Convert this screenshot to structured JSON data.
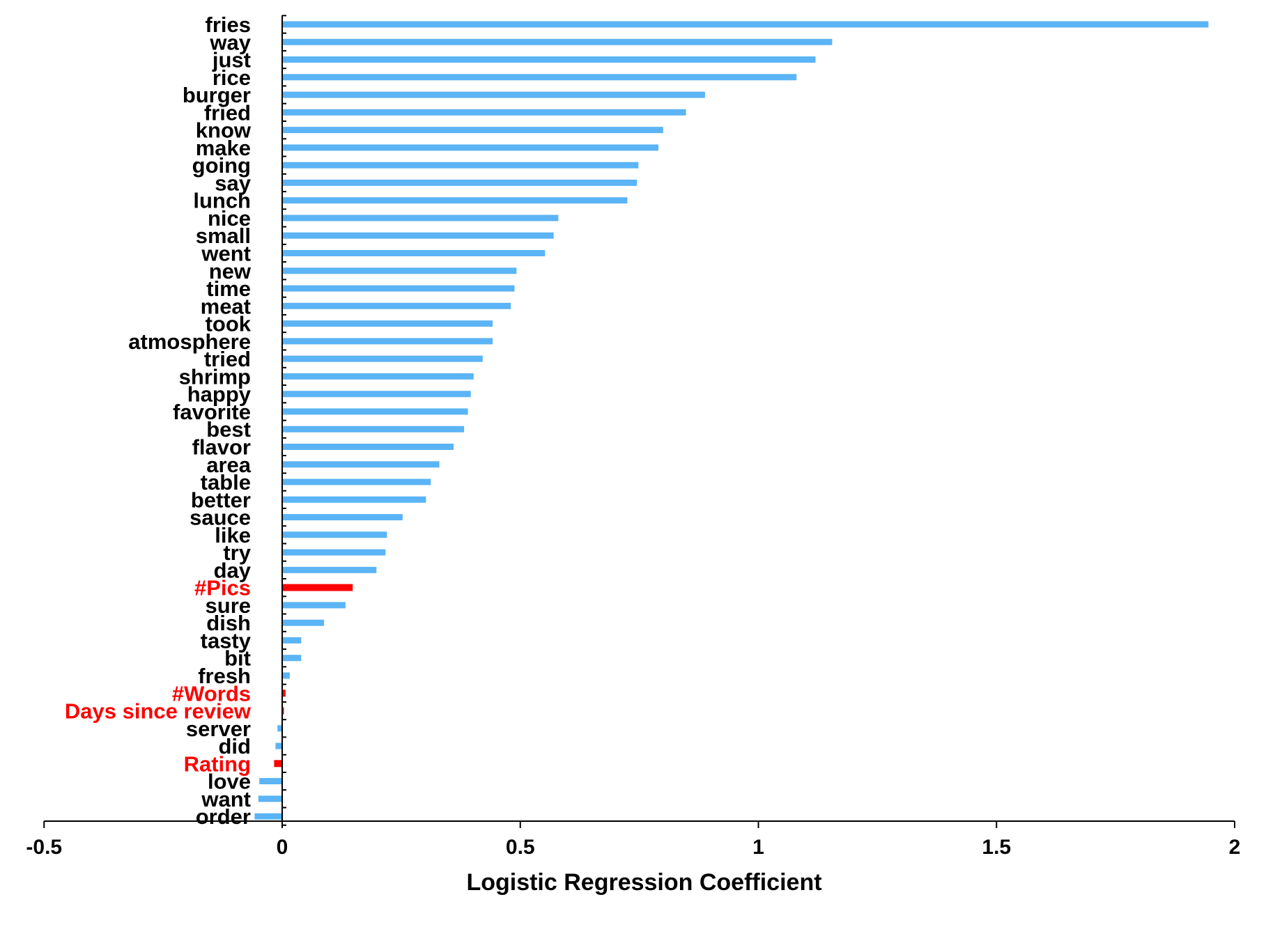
{
  "chart_data": {
    "type": "bar",
    "orientation": "horizontal",
    "xlabel": "Logistic Regression Coefficient",
    "ylabel": "",
    "xlim": [
      -0.5,
      2
    ],
    "xticks": [
      "-0.5",
      "0",
      "0.5",
      "1",
      "1.5",
      "2"
    ],
    "xtick_values": [
      -0.5,
      0,
      0.5,
      1,
      1.5,
      2
    ],
    "grid": false,
    "legend": "none",
    "colors": {
      "default": "#5BB4F5",
      "highlight": "#FF0000",
      "highlight_text": "#FF0000",
      "text": "#000000"
    },
    "categories": [
      "fries",
      "way",
      "just",
      "rice",
      "burger",
      "fried",
      "know",
      "make",
      "going",
      "say",
      "lunch",
      "nice",
      "small",
      "went",
      "new",
      "time",
      "meat",
      "took",
      "atmosphere",
      "tried",
      "shrimp",
      "happy",
      "favorite",
      "best",
      "flavor",
      "area",
      "table",
      "better",
      "sauce",
      "like",
      "try",
      "day",
      "#Pics",
      "sure",
      "dish",
      "tasty",
      "bit",
      "fresh",
      "#Words",
      "Days since review",
      "server",
      "did",
      "Rating",
      "love",
      "want",
      "order"
    ],
    "values": [
      1.945,
      1.155,
      1.12,
      1.08,
      0.888,
      0.848,
      0.8,
      0.79,
      0.748,
      0.745,
      0.725,
      0.58,
      0.57,
      0.552,
      0.492,
      0.488,
      0.48,
      0.442,
      0.442,
      0.421,
      0.402,
      0.396,
      0.39,
      0.382,
      0.36,
      0.33,
      0.312,
      0.302,
      0.253,
      0.22,
      0.217,
      0.198,
      0.148,
      0.133,
      0.088,
      0.04,
      0.04,
      0.016,
      0.007,
      0.002,
      -0.01,
      -0.014,
      -0.017,
      -0.048,
      -0.05,
      -0.058
    ],
    "highlighted": [
      "#Pics",
      "#Words",
      "Days since review",
      "Rating"
    ]
  }
}
